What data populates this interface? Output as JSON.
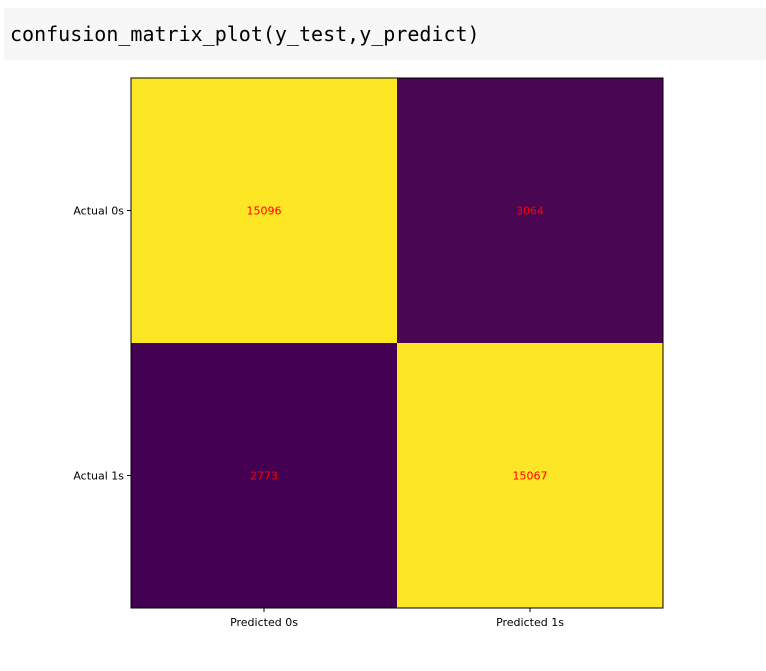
{
  "code_cell": {
    "source": "confusion_matrix_plot(y_test,y_predict)"
  },
  "chart_data": {
    "type": "heatmap",
    "row_labels": [
      "Actual 0s",
      "Actual 1s"
    ],
    "column_labels": [
      "Predicted 0s",
      "Predicted 1s"
    ],
    "values": [
      [
        15096,
        3064
      ],
      [
        2773,
        15067
      ]
    ],
    "colormap": "viridis",
    "high_color": "#fde725",
    "low_color": "#440154",
    "annotation_color": "#ff0000"
  }
}
